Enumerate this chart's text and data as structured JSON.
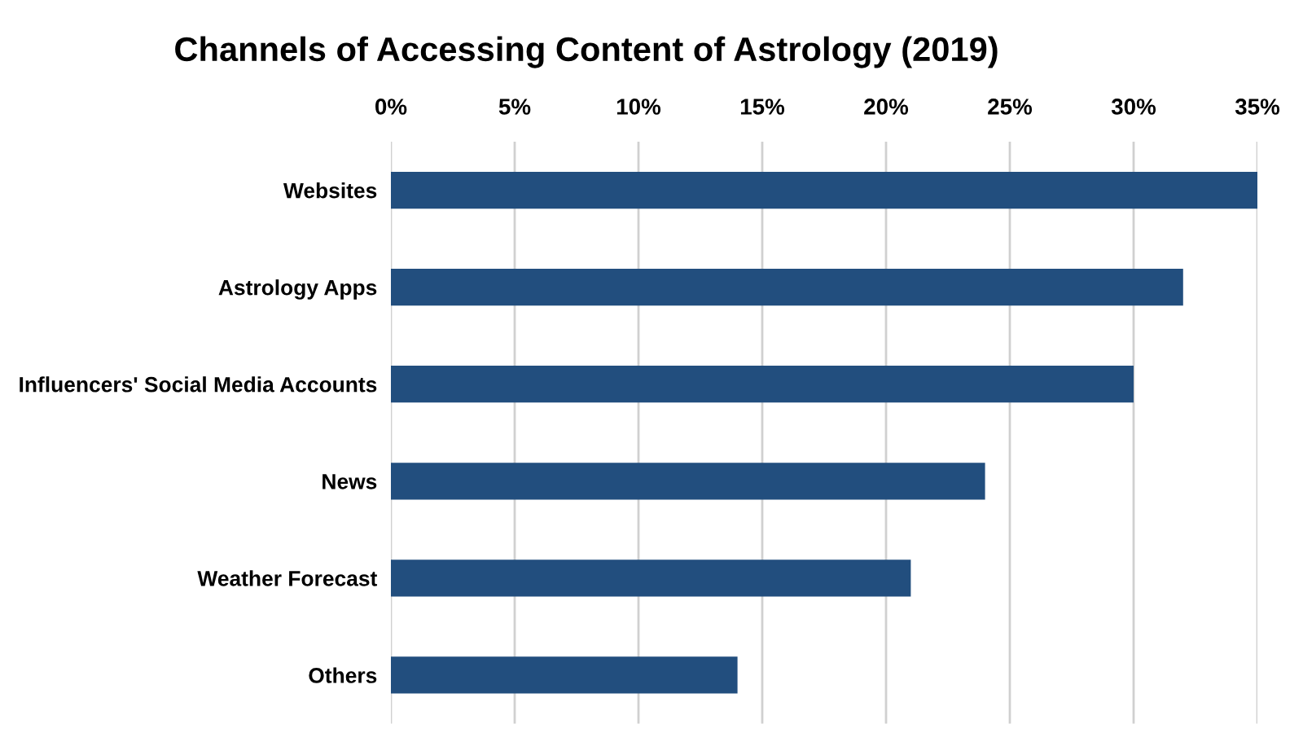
{
  "chart_data": {
    "type": "bar",
    "orientation": "horizontal",
    "title": "Channels of Accessing Content of Astrology (2019)",
    "categories": [
      "Websites",
      "Astrology Apps",
      "Influencers' Social Media Accounts",
      "News",
      "Weather Forecast",
      "Others"
    ],
    "values": [
      35,
      32,
      30,
      24,
      21,
      14
    ],
    "color": "#224e7e",
    "xlim": [
      0,
      35
    ],
    "xticks": [
      {
        "value": 0,
        "label": "0%"
      },
      {
        "value": 5,
        "label": "5%"
      },
      {
        "value": 10,
        "label": "10%"
      },
      {
        "value": 15,
        "label": "15%"
      },
      {
        "value": 20,
        "label": "20%"
      },
      {
        "value": 25,
        "label": "25%"
      },
      {
        "value": 30,
        "label": "30%"
      },
      {
        "value": 35,
        "label": "35%"
      }
    ],
    "grid": "x"
  }
}
